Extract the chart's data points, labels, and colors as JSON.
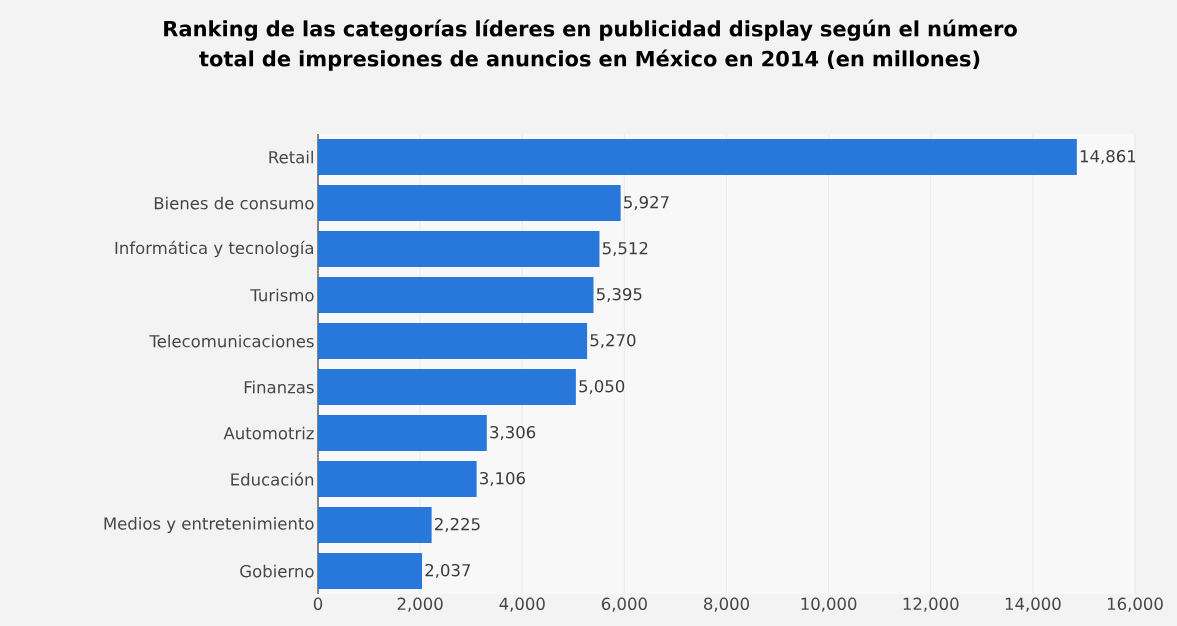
{
  "chart_data": {
    "type": "bar",
    "orientation": "horizontal",
    "title": "Ranking de las categorías líderes en publicidad display según el número total de impresiones de anuncios en México en 2014 (en millones)",
    "categories": [
      "Retail",
      "Bienes de consumo",
      "Informática y tecnología",
      "Turismo",
      "Telecomunicaciones",
      "Finanzas",
      "Automotriz",
      "Educación",
      "Medios y entretenimiento",
      "Gobierno"
    ],
    "values": [
      14861,
      5927,
      5512,
      5395,
      5270,
      5050,
      3306,
      3106,
      2225,
      2037
    ],
    "value_labels": [
      "14,861",
      "5,927",
      "5,512",
      "5,395",
      "5,270",
      "5,050",
      "3,306",
      "3,106",
      "2,225",
      "2,037"
    ],
    "color": "#2878dc",
    "xlim": [
      0,
      16000
    ],
    "xticks": [
      0,
      {
        "value": 2000,
        "label": "2,000"
      },
      {
        "value": 4000,
        "label": "4,000"
      },
      {
        "value": 6000,
        "label": "6,000"
      },
      {
        "value": 8000,
        "label": "8,000"
      },
      {
        "value": 10000,
        "label": "10,000"
      },
      {
        "value": 12000,
        "label": "12,000"
      },
      {
        "value": 14000,
        "label": "14,000"
      },
      {
        "value": 16000,
        "label": "16,000"
      }
    ],
    "grid": "x"
  }
}
